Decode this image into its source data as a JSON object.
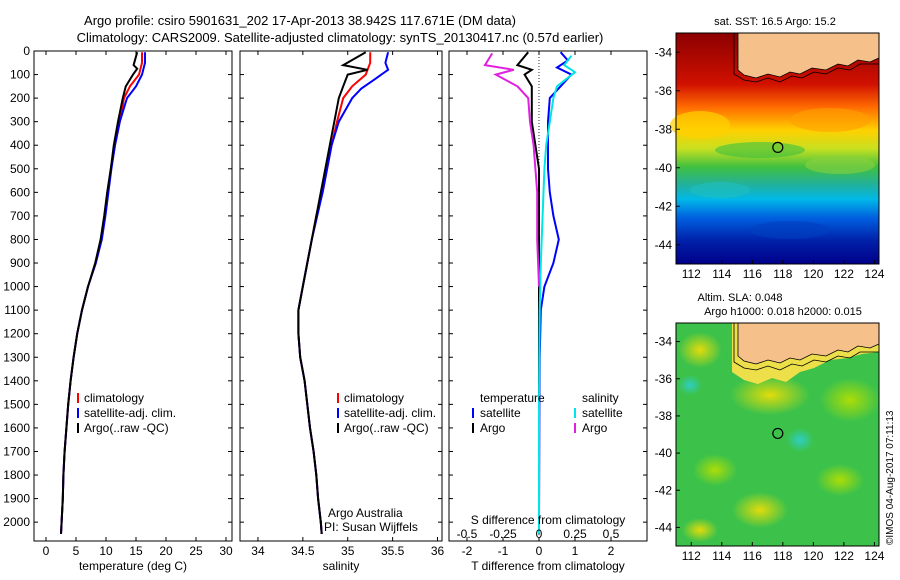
{
  "title": {
    "line1": "Argo profile: csiro 5901631_202 17-Apr-2013 38.942S 117.671E (DM data)",
    "line2": "Climatology: CARS2009. Satellite-adjusted climatology: synTS_20130417.nc (0.57d earlier)"
  },
  "colors": {
    "climatology": "#ff0000",
    "satellite": "#0000ff",
    "argo": "#000000",
    "sal_satellite": "#00e5e5",
    "sal_argo": "#e020e0",
    "land": "#f5c08a"
  },
  "notes": {
    "agency": "Argo Australia",
    "pi": "PI: Susan Wijffels",
    "watermark": "©IMOS 04-Aug-2017 07:11:13"
  },
  "chart_data": [
    {
      "type": "line",
      "id": "temperature",
      "xlabel": "temperature (deg C)",
      "xlim": [
        -2,
        31
      ],
      "ylim": [
        2080,
        0
      ],
      "xticks": [
        0,
        5,
        10,
        15,
        20,
        25,
        30
      ],
      "yticks": [
        0,
        100,
        200,
        300,
        400,
        500,
        600,
        700,
        800,
        900,
        1000,
        1100,
        1200,
        1300,
        1400,
        1500,
        1600,
        1700,
        1800,
        1900,
        2000
      ],
      "legend": [
        "climatology",
        "satellite-adj. clim.",
        "Argo(..raw -QC)"
      ],
      "series": [
        {
          "name": "climatology",
          "color": "#ff0000",
          "points": [
            [
              16,
              5
            ],
            [
              16,
              50
            ],
            [
              15.5,
              100
            ],
            [
              14,
              150
            ],
            [
              13,
              200
            ],
            [
              12.3,
              300
            ],
            [
              11.5,
              400
            ],
            [
              10.8,
              500
            ],
            [
              10.3,
              600
            ],
            [
              9.8,
              700
            ],
            [
              9.2,
              800
            ],
            [
              8.3,
              900
            ],
            [
              7,
              1000
            ],
            [
              6,
              1100
            ],
            [
              5.2,
              1200
            ],
            [
              4.6,
              1300
            ],
            [
              4.1,
              1400
            ],
            [
              3.7,
              1500
            ],
            [
              3.4,
              1600
            ],
            [
              3.1,
              1700
            ],
            [
              2.9,
              1800
            ],
            [
              2.8,
              1900
            ],
            [
              2.6,
              2000
            ],
            [
              2.5,
              2050
            ]
          ]
        },
        {
          "name": "satellite-adj. clim.",
          "color": "#0000ff",
          "points": [
            [
              16.5,
              5
            ],
            [
              16.5,
              50
            ],
            [
              16,
              100
            ],
            [
              15,
              150
            ],
            [
              13.5,
              200
            ],
            [
              12.3,
              300
            ],
            [
              11.5,
              400
            ],
            [
              10.9,
              500
            ],
            [
              10.4,
              600
            ],
            [
              9.9,
              700
            ],
            [
              9.3,
              800
            ],
            [
              8.3,
              900
            ],
            [
              7,
              1000
            ],
            [
              6,
              1100
            ],
            [
              5.2,
              1200
            ],
            [
              4.6,
              1300
            ],
            [
              4.1,
              1400
            ],
            [
              3.7,
              1500
            ],
            [
              3.4,
              1600
            ],
            [
              3.1,
              1700
            ],
            [
              2.9,
              1800
            ],
            [
              2.8,
              1900
            ],
            [
              2.6,
              2000
            ],
            [
              2.5,
              2050
            ]
          ]
        },
        {
          "name": "Argo(..raw -QC)",
          "color": "#000000",
          "points": [
            [
              15.2,
              5
            ],
            [
              14.6,
              60
            ],
            [
              15.2,
              75
            ],
            [
              14.5,
              100
            ],
            [
              13.3,
              150
            ],
            [
              12.8,
              200
            ],
            [
              12,
              300
            ],
            [
              11.3,
              400
            ],
            [
              10.8,
              500
            ],
            [
              10.2,
              600
            ],
            [
              9.7,
              700
            ],
            [
              9.1,
              800
            ],
            [
              8.2,
              900
            ],
            [
              7,
              1000
            ],
            [
              6,
              1100
            ],
            [
              5.2,
              1200
            ],
            [
              4.6,
              1300
            ],
            [
              4.1,
              1400
            ],
            [
              3.7,
              1500
            ],
            [
              3.4,
              1600
            ],
            [
              3.1,
              1700
            ],
            [
              2.9,
              1800
            ],
            [
              2.8,
              1900
            ],
            [
              2.6,
              2000
            ],
            [
              2.5,
              2050
            ]
          ]
        }
      ]
    },
    {
      "type": "line",
      "id": "salinity",
      "xlabel": "salinity",
      "xlim": [
        33.8,
        36.05
      ],
      "ylim": [
        2080,
        0
      ],
      "xticks": [
        34,
        34.5,
        35,
        35.5,
        36
      ],
      "legend": [
        "climatology",
        "satellite-adj. clim.",
        "Argo(..raw -QC)"
      ],
      "series": [
        {
          "name": "climatology",
          "color": "#ff0000",
          "points": [
            [
              35.25,
              5
            ],
            [
              35.25,
              50
            ],
            [
              35.2,
              100
            ],
            [
              35.05,
              150
            ],
            [
              34.95,
              200
            ],
            [
              34.88,
              300
            ],
            [
              34.82,
              400
            ],
            [
              34.77,
              500
            ],
            [
              34.72,
              600
            ],
            [
              34.65,
              700
            ],
            [
              34.6,
              800
            ],
            [
              34.55,
              900
            ],
            [
              34.5,
              1000
            ],
            [
              34.45,
              1100
            ],
            [
              34.45,
              1200
            ],
            [
              34.47,
              1300
            ],
            [
              34.52,
              1400
            ],
            [
              34.55,
              1500
            ],
            [
              34.58,
              1600
            ],
            [
              34.62,
              1700
            ],
            [
              34.65,
              1800
            ],
            [
              34.67,
              1900
            ],
            [
              34.7,
              2000
            ],
            [
              34.71,
              2050
            ]
          ]
        },
        {
          "name": "satellite-adj. clim.",
          "color": "#0000ff",
          "points": [
            [
              35.45,
              5
            ],
            [
              35.42,
              50
            ],
            [
              35.45,
              80
            ],
            [
              35.3,
              120
            ],
            [
              35.15,
              160
            ],
            [
              35.05,
              200
            ],
            [
              34.9,
              300
            ],
            [
              34.82,
              400
            ],
            [
              34.77,
              500
            ],
            [
              34.72,
              600
            ],
            [
              34.66,
              700
            ],
            [
              34.6,
              800
            ],
            [
              34.55,
              900
            ],
            [
              34.5,
              1000
            ],
            [
              34.45,
              1100
            ],
            [
              34.45,
              1200
            ],
            [
              34.47,
              1300
            ],
            [
              34.52,
              1400
            ],
            [
              34.55,
              1500
            ],
            [
              34.58,
              1600
            ],
            [
              34.62,
              1700
            ],
            [
              34.65,
              1800
            ],
            [
              34.67,
              1900
            ],
            [
              34.7,
              2000
            ],
            [
              34.71,
              2050
            ]
          ]
        },
        {
          "name": "Argo(..raw -QC)",
          "color": "#000000",
          "points": [
            [
              35.2,
              5
            ],
            [
              34.95,
              60
            ],
            [
              35.22,
              80
            ],
            [
              35.0,
              100
            ],
            [
              34.95,
              150
            ],
            [
              34.9,
              200
            ],
            [
              34.85,
              300
            ],
            [
              34.8,
              400
            ],
            [
              34.75,
              500
            ],
            [
              34.7,
              600
            ],
            [
              34.65,
              700
            ],
            [
              34.6,
              800
            ],
            [
              34.55,
              900
            ],
            [
              34.5,
              1000
            ],
            [
              34.45,
              1100
            ],
            [
              34.45,
              1200
            ],
            [
              34.47,
              1300
            ],
            [
              34.52,
              1400
            ],
            [
              34.55,
              1500
            ],
            [
              34.58,
              1600
            ],
            [
              34.62,
              1700
            ],
            [
              34.65,
              1800
            ],
            [
              34.67,
              1900
            ],
            [
              34.7,
              2000
            ],
            [
              34.71,
              2050
            ]
          ]
        }
      ]
    },
    {
      "type": "line",
      "id": "difference",
      "xlabel": "T difference from climatology",
      "xlabel_top": "S difference from climatology",
      "xlim": [
        -2.5,
        3
      ],
      "ylim": [
        2080,
        0
      ],
      "xticks": [
        -2,
        -1,
        0,
        1,
        2
      ],
      "sticks_label": [
        "-0.5",
        "-0.25",
        "0",
        "0.25",
        "0.5"
      ],
      "sticks_pos": [
        -2,
        -1,
        0,
        1,
        2
      ],
      "legend_temperature_title": "temperature",
      "legend_salinity_title": "salinity",
      "legend_temperature": [
        "satellite",
        "Argo"
      ],
      "legend_salinity": [
        "satellite",
        "Argo"
      ],
      "series": [
        {
          "name": "satellite",
          "group": "temperature",
          "color": "#0000ff",
          "points": [
            [
              0.6,
              5
            ],
            [
              0.8,
              40
            ],
            [
              0.5,
              70
            ],
            [
              0.9,
              100
            ],
            [
              0.6,
              150
            ],
            [
              0.3,
              200
            ],
            [
              0.25,
              300
            ],
            [
              0.25,
              400
            ],
            [
              0.25,
              500
            ],
            [
              0.3,
              600
            ],
            [
              0.4,
              700
            ],
            [
              0.55,
              800
            ],
            [
              0.4,
              900
            ],
            [
              0.15,
              1000
            ],
            [
              0.05,
              1100
            ],
            [
              0.02,
              1300
            ],
            [
              0.01,
              1500
            ],
            [
              0,
              2050
            ]
          ]
        },
        {
          "name": "Argo",
          "group": "temperature",
          "color": "#000000",
          "points": [
            [
              -0.3,
              5
            ],
            [
              -0.6,
              60
            ],
            [
              -0.2,
              80
            ],
            [
              -0.4,
              100
            ],
            [
              -0.2,
              150
            ],
            [
              -0.2,
              200
            ],
            [
              -0.2,
              300
            ],
            [
              -0.1,
              400
            ],
            [
              0,
              500
            ],
            [
              0,
              700
            ],
            [
              0,
              1000
            ],
            [
              0,
              2050
            ]
          ]
        },
        {
          "name": "satellite",
          "group": "salinity",
          "color": "#00e5e5",
          "points": [
            [
              0.9,
              20
            ],
            [
              0.7,
              60
            ],
            [
              1.0,
              90
            ],
            [
              0.5,
              150
            ],
            [
              0.4,
              200
            ],
            [
              0.3,
              300
            ],
            [
              0.2,
              400
            ],
            [
              0.15,
              500
            ],
            [
              0.1,
              700
            ],
            [
              0.05,
              900
            ],
            [
              0.02,
              1100
            ],
            [
              0,
              1500
            ],
            [
              0,
              2050
            ]
          ]
        },
        {
          "name": "Argo",
          "group": "salinity",
          "color": "#e020e0",
          "points": [
            [
              -1.3,
              10
            ],
            [
              -1.5,
              60
            ],
            [
              -0.7,
              80
            ],
            [
              -1.2,
              100
            ],
            [
              -0.6,
              150
            ],
            [
              -0.3,
              200
            ],
            [
              -0.25,
              300
            ],
            [
              -0.15,
              400
            ],
            [
              -0.1,
              500
            ],
            [
              -0.05,
              600
            ],
            [
              -0.05,
              800
            ],
            [
              0,
              1000
            ]
          ]
        }
      ]
    },
    {
      "type": "heatmap",
      "id": "sst_map",
      "title": "sat. SST: 16.5 Argo: 15.2",
      "xticks": [
        112,
        114,
        116,
        118,
        120,
        122,
        124
      ],
      "yticks": [
        -34,
        -36,
        -38,
        -40,
        -42,
        -44
      ],
      "xlim": [
        111,
        124.3
      ],
      "ylim": [
        -45,
        -33
      ],
      "marker": [
        117.671,
        -38.942
      ]
    },
    {
      "type": "heatmap",
      "id": "sla_map",
      "title_line1": "Altim. SLA: 0.048",
      "title_line2": "Argo h1000: 0.018 h2000: 0.015",
      "xticks": [
        112,
        114,
        116,
        118,
        120,
        122,
        124
      ],
      "yticks": [
        -34,
        -36,
        -38,
        -40,
        -42,
        -44
      ],
      "xlim": [
        111,
        124.3
      ],
      "ylim": [
        -45,
        -33
      ],
      "marker": [
        117.671,
        -38.942
      ]
    }
  ]
}
